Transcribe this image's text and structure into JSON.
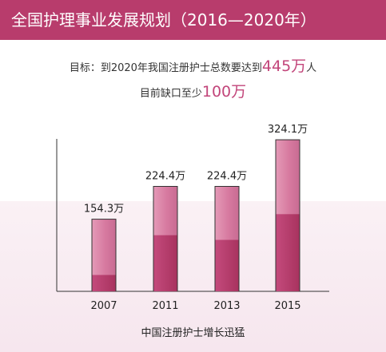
{
  "header": {
    "title": "全国护理事业发展规划（2016—2020年）"
  },
  "target": {
    "line1_prefix": "目标：到2020年我国注册护士总数要达到",
    "line1_value": "445万",
    "line1_suffix": "人",
    "line2_prefix": "目前缺口至少",
    "line2_value": "100万"
  },
  "footer": {
    "caption": "中国注册护士增长迅猛"
  },
  "colors": {
    "accent": "#b83c6c",
    "bar_light": "#e38fb0",
    "bar_dark": "#b83c6c"
  },
  "chart_data": {
    "type": "bar",
    "categories": [
      "2007",
      "2011",
      "2013",
      "2015"
    ],
    "values": [
      154.3,
      224.4,
      224.4,
      324.1
    ],
    "data_labels": [
      "154.3万",
      "224.4万",
      "224.4万",
      "324.1万"
    ],
    "dark_segment_values": [
      35,
      120,
      110,
      165
    ],
    "title": "",
    "xlabel": "",
    "ylabel": "",
    "grid": false
  }
}
